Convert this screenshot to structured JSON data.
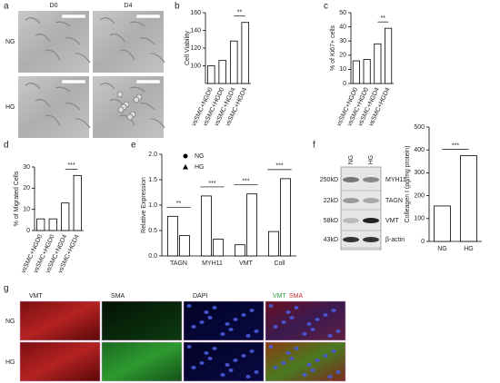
{
  "panel_labels": [
    "a",
    "b",
    "c",
    "d",
    "e",
    "f",
    "g"
  ],
  "panel_a": {
    "columns": [
      "D0",
      "D4"
    ],
    "rows": [
      "NG",
      "HG"
    ]
  },
  "chart_data": [
    {
      "type": "bar",
      "ylabel": "Cell Viability",
      "categories": [
        "vsSMC+NGD0",
        "vsSMC+HGD0",
        "vsSMC+NGD4",
        "vsSMC+HGD4"
      ],
      "values": [
        100,
        106,
        128,
        149
      ],
      "color": "#ffffff",
      "ylim": [
        80,
        160
      ],
      "yticks": [
        100,
        120,
        140,
        160
      ],
      "annotations": [
        "**"
      ]
    },
    {
      "type": "bar",
      "ylabel": "% of Ki67+ cells",
      "categories": [
        "vsSMC+NGD0",
        "vsSMC+HGD0",
        "vsSMC+NGD4",
        "vsSMC+HGD4"
      ],
      "values": [
        16,
        17,
        28,
        39
      ],
      "color": "#ffffff",
      "ylim": [
        0,
        50
      ],
      "yticks": [
        0,
        10,
        20,
        30,
        40,
        50
      ],
      "annotations": [
        "**"
      ]
    },
    {
      "type": "bar",
      "ylabel": "% of Migrated Cells",
      "categories": [
        "vsSMC+NGD0",
        "vsSMC+HGD0",
        "vsSMC+NGD4",
        "vsSMC+HGD4"
      ],
      "values": [
        5.5,
        5.5,
        13,
        26
      ],
      "color": "#ffffff",
      "ylim": [
        0,
        30
      ],
      "yticks": [
        0,
        10,
        20,
        30
      ],
      "annotations": [
        "***"
      ]
    },
    {
      "type": "grouped_bar",
      "ylabel": "Relative Expression",
      "categories": [
        "TAGN",
        "MYH11",
        "VMT",
        "Coll"
      ],
      "series": [
        {
          "name": "NG",
          "color": "#ffffff",
          "marker": "circle",
          "values": [
            0.78,
            1.18,
            0.22,
            0.48
          ]
        },
        {
          "name": "HG",
          "color": "#ffffff",
          "marker": "triangle",
          "values": [
            0.4,
            0.33,
            1.22,
            1.52
          ]
        }
      ],
      "ylim": [
        0,
        2
      ],
      "yticks": [
        {
          "value": 0,
          "label": "0.0"
        },
        0.5,
        {
          "value": 1,
          "label": "1.0"
        },
        1.5,
        {
          "value": 2,
          "label": "2.0"
        }
      ],
      "annotations": [
        "**",
        "***",
        "***",
        "***"
      ]
    },
    {
      "type": "bar",
      "ylabel": "Colleagen I (pg/mg protein)",
      "categories": [
        "NG",
        "HG"
      ],
      "values": [
        155,
        375
      ],
      "color": "#ffffff",
      "ylim": [
        0,
        500
      ],
      "yticks": [
        0,
        100,
        200,
        300,
        400,
        500
      ],
      "annotations": [
        "***"
      ]
    }
  ],
  "panel_f": {
    "lanes": [
      "NG",
      "HG"
    ],
    "sizes": [
      "250kD",
      "22kD",
      "58kD",
      "43kD"
    ],
    "proteins": [
      "MYH11",
      "TAGN",
      "VMT",
      "β-actin"
    ]
  },
  "panel_g": {
    "columns": [
      "VMT",
      "SMA",
      "DAPI"
    ],
    "merge": [
      "VMT",
      "SMA"
    ],
    "rows": [
      "NG",
      "HG"
    ]
  }
}
